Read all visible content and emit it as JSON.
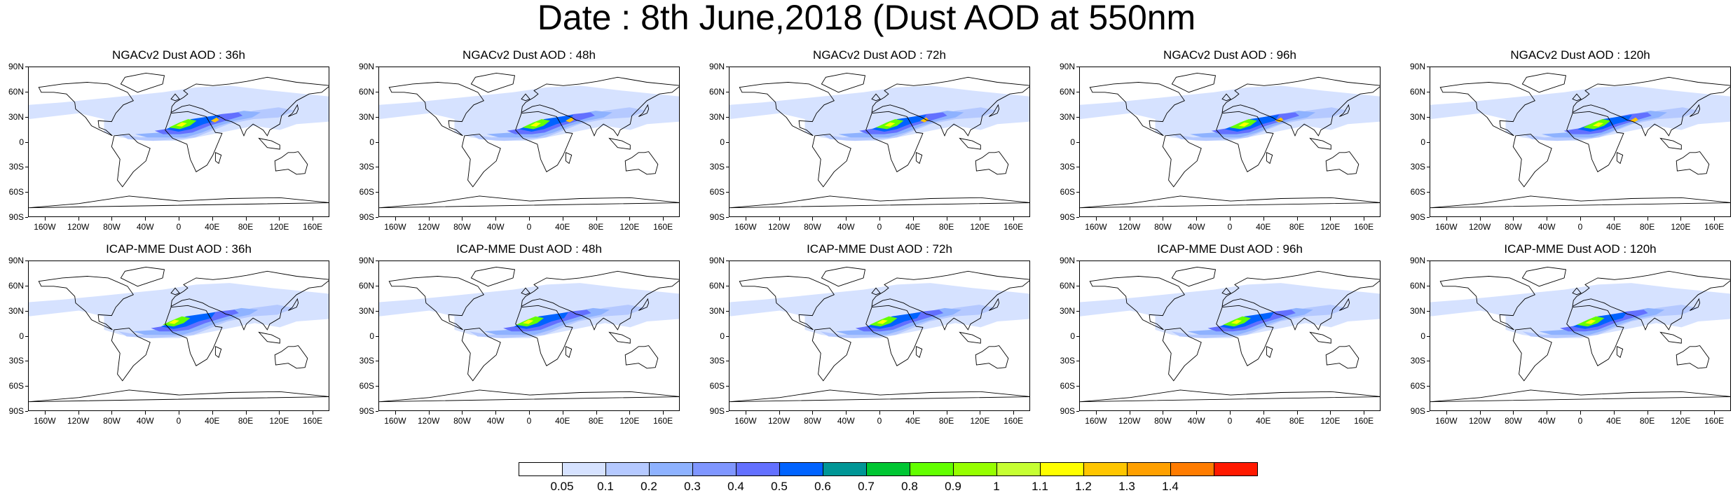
{
  "title": "Date : 8th June,2018 (Dust AOD at 550nm",
  "lat_labels": [
    "90N",
    "60N",
    "30N",
    "0",
    "30S",
    "60S",
    "90S"
  ],
  "lon_labels": [
    "160W",
    "120W",
    "80W",
    "40W",
    "0",
    "40E",
    "80E",
    "120E",
    "160E"
  ],
  "panels": [
    {
      "title": "NGACv2 Dust AOD : 36h",
      "model": "NGACv2",
      "lead_hours": 36
    },
    {
      "title": "NGACv2 Dust AOD : 48h",
      "model": "NGACv2",
      "lead_hours": 48
    },
    {
      "title": "NGACv2 Dust AOD : 72h",
      "model": "NGACv2",
      "lead_hours": 72
    },
    {
      "title": "NGACv2 Dust AOD : 96h",
      "model": "NGACv2",
      "lead_hours": 96
    },
    {
      "title": "NGACv2 Dust AOD : 120h",
      "model": "NGACv2",
      "lead_hours": 120
    },
    {
      "title": "ICAP-MME Dust AOD : 36h",
      "model": "ICAP-MME",
      "lead_hours": 36
    },
    {
      "title": "ICAP-MME Dust AOD : 48h",
      "model": "ICAP-MME",
      "lead_hours": 48
    },
    {
      "title": "ICAP-MME Dust AOD : 72h",
      "model": "ICAP-MME",
      "lead_hours": 72
    },
    {
      "title": "ICAP-MME Dust AOD : 96h",
      "model": "ICAP-MME",
      "lead_hours": 96
    },
    {
      "title": "ICAP-MME Dust AOD : 120h",
      "model": "ICAP-MME",
      "lead_hours": 120
    }
  ],
  "colorbar": {
    "labels": [
      "0.05",
      "0.1",
      "0.2",
      "0.3",
      "0.4",
      "0.5",
      "0.6",
      "0.7",
      "0.8",
      "0.9",
      "1",
      "1.1",
      "1.2",
      "1.3",
      "1.4"
    ],
    "colors": [
      "#ffffff",
      "#d6e2ff",
      "#b5c9ff",
      "#8eb2ff",
      "#7f96ff",
      "#6370ff",
      "#0063ff",
      "#009696",
      "#00c633",
      "#63ff00",
      "#96ff00",
      "#c6ff33",
      "#ffff00",
      "#ffc600",
      "#ffa000",
      "#ff7c00",
      "#ff1900"
    ]
  }
}
